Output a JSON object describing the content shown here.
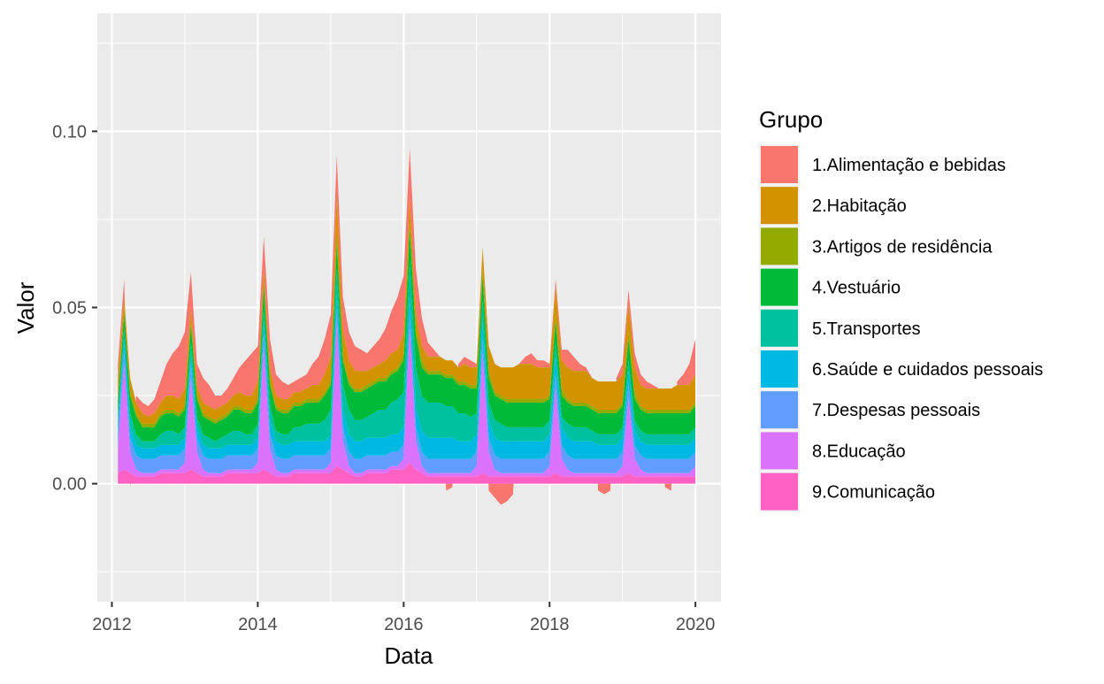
{
  "chart_data": {
    "type": "area",
    "stacked": true,
    "title": "",
    "xlabel": "Data",
    "ylabel": "Valor",
    "xlim": [
      2011.8,
      2020.35
    ],
    "ylim": [
      -0.0335,
      0.1335
    ],
    "x_ticks": [
      2012,
      2014,
      2016,
      2018,
      2020
    ],
    "y_ticks": [
      0.0,
      0.05,
      0.1
    ],
    "y_tick_labels": [
      "0.00",
      "0.05",
      "0.10"
    ],
    "grid": true,
    "legend": {
      "title": "Grupo",
      "position": "right",
      "entries": [
        "1.Alimentação e bebidas",
        "2.Habitação",
        "3.Artigos de residência",
        "4.Vestuário",
        "5.Transportes",
        "6.Saúde e cuidados pessoais",
        "7.Despesas pessoais",
        "8.Educação",
        "9.Comunicação"
      ]
    },
    "colors": [
      "#F8766D",
      "#D39200",
      "#93AA00",
      "#00BA38",
      "#00C19F",
      "#00B9E3",
      "#619CFF",
      "#DB72FB",
      "#FF61C3"
    ],
    "x": [
      2012.083,
      2012.167,
      2012.25,
      2012.333,
      2012.417,
      2012.5,
      2012.583,
      2012.667,
      2012.75,
      2012.833,
      2012.917,
      2013.0,
      2013.083,
      2013.167,
      2013.25,
      2013.333,
      2013.417,
      2013.5,
      2013.583,
      2013.667,
      2013.75,
      2013.833,
      2013.917,
      2014.0,
      2014.083,
      2014.167,
      2014.25,
      2014.333,
      2014.417,
      2014.5,
      2014.583,
      2014.667,
      2014.75,
      2014.833,
      2014.917,
      2015.0,
      2015.083,
      2015.167,
      2015.25,
      2015.333,
      2015.417,
      2015.5,
      2015.583,
      2015.667,
      2015.75,
      2015.833,
      2015.917,
      2016.0,
      2016.083,
      2016.167,
      2016.25,
      2016.333,
      2016.417,
      2016.5,
      2016.583,
      2016.667,
      2016.75,
      2016.833,
      2016.917,
      2017.0,
      2017.083,
      2017.167,
      2017.25,
      2017.333,
      2017.417,
      2017.5,
      2017.583,
      2017.667,
      2017.75,
      2017.833,
      2017.917,
      2018.0,
      2018.083,
      2018.167,
      2018.25,
      2018.333,
      2018.417,
      2018.5,
      2018.583,
      2018.667,
      2018.75,
      2018.833,
      2018.917,
      2019.0,
      2019.083,
      2019.167,
      2019.25,
      2019.333,
      2019.417,
      2019.5,
      2019.583,
      2019.667,
      2019.75,
      2019.833,
      2019.917,
      2020.0
    ],
    "series": [
      {
        "name": "1.Alimentação e bebidas",
        "values": [
          0.004,
          0.005,
          -0.001,
          0.002,
          0.003,
          0.003,
          0.004,
          0.006,
          0.009,
          0.012,
          0.015,
          0.016,
          0.01,
          0.006,
          0.007,
          0.006,
          0.004,
          0.003,
          0.004,
          0.005,
          0.007,
          0.01,
          0.012,
          0.01,
          0.009,
          0.008,
          0.006,
          0.005,
          0.004,
          0.003,
          0.004,
          0.004,
          0.006,
          0.008,
          0.01,
          0.012,
          0.011,
          0.009,
          0.008,
          0.007,
          0.006,
          0.005,
          0.006,
          0.007,
          0.009,
          0.012,
          0.015,
          0.016,
          0.014,
          0.012,
          0.008,
          0.004,
          0.002,
          0.0,
          -0.002,
          -0.001,
          0.001,
          0.002,
          0.002,
          0.001,
          0.0,
          -0.002,
          -0.004,
          -0.006,
          -0.005,
          -0.003,
          0.0,
          0.002,
          0.003,
          0.002,
          0.002,
          0.001,
          0.002,
          0.003,
          0.005,
          0.004,
          0.002,
          0.001,
          0.0,
          -0.002,
          -0.003,
          -0.002,
          0.001,
          0.003,
          0.004,
          0.004,
          0.003,
          0.002,
          0.001,
          0.0,
          -0.001,
          -0.002,
          0.001,
          0.003,
          0.006,
          0.01
        ]
      },
      {
        "name": "2.Habitação",
        "values": [
          0.005,
          0.003,
          0.004,
          0.003,
          0.003,
          0.002,
          0.003,
          0.003,
          0.004,
          0.004,
          0.004,
          0.005,
          0.004,
          0.003,
          0.003,
          0.003,
          0.003,
          0.003,
          0.003,
          0.003,
          0.004,
          0.004,
          0.004,
          0.005,
          0.004,
          0.004,
          0.003,
          0.003,
          0.003,
          0.003,
          0.003,
          0.003,
          0.004,
          0.004,
          0.005,
          0.007,
          0.012,
          0.008,
          0.006,
          0.005,
          0.005,
          0.004,
          0.004,
          0.004,
          0.005,
          0.005,
          0.005,
          0.006,
          0.007,
          0.005,
          0.004,
          0.004,
          0.004,
          0.004,
          0.004,
          0.004,
          0.004,
          0.005,
          0.005,
          0.005,
          0.006,
          0.007,
          0.008,
          0.008,
          0.009,
          0.009,
          0.01,
          0.01,
          0.01,
          0.009,
          0.009,
          0.008,
          0.008,
          0.008,
          0.009,
          0.009,
          0.009,
          0.009,
          0.008,
          0.008,
          0.008,
          0.008,
          0.008,
          0.008,
          0.008,
          0.007,
          0.006,
          0.006,
          0.006,
          0.006,
          0.006,
          0.006,
          0.007,
          0.007,
          0.007,
          0.008
        ]
      },
      {
        "name": "3.Artigos de residência",
        "values": [
          0.002,
          0.002,
          0.001,
          0.001,
          0.001,
          0.001,
          0.001,
          0.001,
          0.001,
          0.001,
          0.001,
          0.001,
          0.001,
          0.001,
          0.001,
          0.001,
          0.001,
          0.001,
          0.001,
          0.001,
          0.001,
          0.001,
          0.001,
          0.001,
          0.001,
          0.001,
          0.001,
          0.001,
          0.001,
          0.001,
          0.001,
          0.001,
          0.001,
          0.001,
          0.001,
          0.001,
          0.002,
          0.001,
          0.001,
          0.001,
          0.001,
          0.001,
          0.001,
          0.001,
          0.001,
          0.001,
          0.001,
          0.002,
          0.002,
          0.002,
          0.002,
          0.001,
          0.001,
          0.001,
          0.001,
          0.001,
          0.001,
          0.001,
          0.001,
          0.001,
          0.002,
          0.002,
          0.001,
          0.001,
          0.001,
          0.001,
          0.001,
          0.001,
          0.001,
          0.001,
          0.001,
          0.001,
          0.002,
          0.002,
          0.001,
          0.001,
          0.001,
          0.001,
          0.001,
          0.001,
          0.001,
          0.001,
          0.001,
          0.001,
          0.002,
          0.002,
          0.001,
          0.001,
          0.001,
          0.001,
          0.001,
          0.001,
          0.001,
          0.001,
          0.001,
          0.001
        ]
      },
      {
        "name": "4.Vestuário",
        "values": [
          0.004,
          0.004,
          0.005,
          0.005,
          0.004,
          0.004,
          0.004,
          0.005,
          0.005,
          0.005,
          0.005,
          0.005,
          0.005,
          0.005,
          0.005,
          0.005,
          0.005,
          0.005,
          0.005,
          0.006,
          0.006,
          0.006,
          0.006,
          0.006,
          0.006,
          0.006,
          0.006,
          0.006,
          0.006,
          0.006,
          0.006,
          0.006,
          0.006,
          0.006,
          0.007,
          0.007,
          0.007,
          0.007,
          0.007,
          0.008,
          0.008,
          0.008,
          0.008,
          0.008,
          0.008,
          0.008,
          0.008,
          0.009,
          0.009,
          0.009,
          0.008,
          0.008,
          0.008,
          0.008,
          0.008,
          0.008,
          0.008,
          0.008,
          0.008,
          0.007,
          0.007,
          0.007,
          0.007,
          0.007,
          0.007,
          0.007,
          0.007,
          0.007,
          0.007,
          0.007,
          0.007,
          0.006,
          0.006,
          0.006,
          0.006,
          0.006,
          0.006,
          0.006,
          0.006,
          0.006,
          0.006,
          0.006,
          0.006,
          0.006,
          0.006,
          0.006,
          0.006,
          0.006,
          0.006,
          0.006,
          0.006,
          0.006,
          0.006,
          0.006,
          0.006,
          0.006
        ]
      },
      {
        "name": "5.Transportes",
        "values": [
          0.002,
          0.003,
          0.004,
          0.003,
          0.002,
          0.002,
          0.002,
          0.003,
          0.004,
          0.004,
          0.003,
          0.003,
          0.003,
          0.003,
          0.003,
          0.003,
          0.002,
          0.003,
          0.003,
          0.004,
          0.004,
          0.003,
          0.003,
          0.004,
          0.004,
          0.004,
          0.003,
          0.003,
          0.003,
          0.004,
          0.004,
          0.005,
          0.005,
          0.005,
          0.006,
          0.007,
          0.007,
          0.007,
          0.007,
          0.006,
          0.006,
          0.006,
          0.007,
          0.008,
          0.008,
          0.009,
          0.01,
          0.01,
          0.01,
          0.011,
          0.01,
          0.01,
          0.01,
          0.01,
          0.009,
          0.009,
          0.008,
          0.008,
          0.007,
          0.006,
          0.006,
          0.005,
          0.005,
          0.005,
          0.004,
          0.004,
          0.004,
          0.004,
          0.004,
          0.004,
          0.004,
          0.004,
          0.004,
          0.003,
          0.004,
          0.004,
          0.004,
          0.004,
          0.003,
          0.003,
          0.003,
          0.003,
          0.003,
          0.003,
          0.003,
          0.003,
          0.003,
          0.003,
          0.003,
          0.003,
          0.003,
          0.003,
          0.003,
          0.003,
          0.003,
          0.003
        ]
      },
      {
        "name": "6.Saúde e cuidados pessoais",
        "values": [
          0.003,
          0.003,
          0.003,
          0.003,
          0.003,
          0.003,
          0.003,
          0.003,
          0.003,
          0.003,
          0.003,
          0.003,
          0.003,
          0.003,
          0.003,
          0.003,
          0.003,
          0.003,
          0.003,
          0.003,
          0.003,
          0.003,
          0.003,
          0.003,
          0.003,
          0.004,
          0.004,
          0.004,
          0.004,
          0.004,
          0.004,
          0.004,
          0.004,
          0.004,
          0.004,
          0.004,
          0.004,
          0.005,
          0.005,
          0.005,
          0.005,
          0.005,
          0.005,
          0.005,
          0.005,
          0.005,
          0.005,
          0.005,
          0.005,
          0.006,
          0.006,
          0.006,
          0.006,
          0.006,
          0.006,
          0.006,
          0.005,
          0.005,
          0.005,
          0.005,
          0.005,
          0.005,
          0.005,
          0.005,
          0.005,
          0.005,
          0.005,
          0.005,
          0.005,
          0.005,
          0.005,
          0.005,
          0.005,
          0.005,
          0.005,
          0.005,
          0.005,
          0.005,
          0.005,
          0.004,
          0.004,
          0.004,
          0.004,
          0.004,
          0.004,
          0.004,
          0.004,
          0.004,
          0.004,
          0.004,
          0.004,
          0.004,
          0.004,
          0.004,
          0.004,
          0.004
        ]
      },
      {
        "name": "7.Despesas pessoais",
        "values": [
          0.004,
          0.004,
          0.004,
          0.004,
          0.004,
          0.004,
          0.004,
          0.004,
          0.004,
          0.004,
          0.004,
          0.004,
          0.004,
          0.004,
          0.004,
          0.004,
          0.004,
          0.004,
          0.004,
          0.004,
          0.004,
          0.004,
          0.004,
          0.004,
          0.004,
          0.004,
          0.004,
          0.004,
          0.004,
          0.004,
          0.004,
          0.004,
          0.004,
          0.004,
          0.004,
          0.004,
          0.004,
          0.004,
          0.004,
          0.004,
          0.004,
          0.004,
          0.004,
          0.004,
          0.004,
          0.004,
          0.004,
          0.004,
          0.004,
          0.004,
          0.004,
          0.004,
          0.004,
          0.004,
          0.004,
          0.004,
          0.004,
          0.004,
          0.004,
          0.004,
          0.004,
          0.004,
          0.004,
          0.004,
          0.004,
          0.004,
          0.004,
          0.004,
          0.004,
          0.004,
          0.004,
          0.004,
          0.004,
          0.004,
          0.004,
          0.004,
          0.004,
          0.004,
          0.004,
          0.004,
          0.004,
          0.004,
          0.004,
          0.004,
          0.004,
          0.004,
          0.004,
          0.004,
          0.004,
          0.004,
          0.004,
          0.004,
          0.004,
          0.004,
          0.004,
          0.004
        ]
      },
      {
        "name": "8.Educação",
        "values": [
          0.007,
          0.03,
          0.006,
          0.002,
          0.001,
          0.001,
          0.001,
          0.001,
          0.001,
          0.001,
          0.001,
          0.003,
          0.026,
          0.006,
          0.002,
          0.001,
          0.001,
          0.001,
          0.001,
          0.001,
          0.001,
          0.001,
          0.001,
          0.003,
          0.035,
          0.007,
          0.002,
          0.001,
          0.001,
          0.001,
          0.001,
          0.001,
          0.001,
          0.001,
          0.001,
          0.003,
          0.041,
          0.008,
          0.002,
          0.001,
          0.001,
          0.001,
          0.001,
          0.001,
          0.001,
          0.001,
          0.001,
          0.003,
          0.038,
          0.008,
          0.002,
          0.001,
          0.001,
          0.001,
          0.001,
          0.001,
          0.001,
          0.001,
          0.001,
          0.003,
          0.034,
          0.007,
          0.002,
          0.001,
          0.001,
          0.001,
          0.001,
          0.001,
          0.001,
          0.001,
          0.001,
          0.003,
          0.024,
          0.005,
          0.002,
          0.001,
          0.001,
          0.001,
          0.001,
          0.001,
          0.001,
          0.001,
          0.001,
          0.003,
          0.021,
          0.005,
          0.002,
          0.001,
          0.001,
          0.001,
          0.001,
          0.001,
          0.001,
          0.001,
          0.001,
          0.003
        ]
      },
      {
        "name": "9.Comunicação",
        "values": [
          0.003,
          0.004,
          0.003,
          0.002,
          0.002,
          0.002,
          0.002,
          0.003,
          0.003,
          0.003,
          0.003,
          0.003,
          0.004,
          0.003,
          0.002,
          0.002,
          0.002,
          0.002,
          0.003,
          0.003,
          0.003,
          0.003,
          0.003,
          0.003,
          0.004,
          0.003,
          0.002,
          0.002,
          0.002,
          0.003,
          0.003,
          0.003,
          0.003,
          0.003,
          0.003,
          0.003,
          0.005,
          0.004,
          0.003,
          0.002,
          0.002,
          0.003,
          0.003,
          0.003,
          0.003,
          0.004,
          0.004,
          0.004,
          0.006,
          0.004,
          0.003,
          0.002,
          0.002,
          0.002,
          0.002,
          0.002,
          0.002,
          0.002,
          0.002,
          0.002,
          0.003,
          0.002,
          0.002,
          0.002,
          0.002,
          0.002,
          0.002,
          0.002,
          0.002,
          0.002,
          0.002,
          0.002,
          0.003,
          0.002,
          0.002,
          0.002,
          0.002,
          0.002,
          0.002,
          0.002,
          0.002,
          0.002,
          0.002,
          0.002,
          0.003,
          0.002,
          0.002,
          0.002,
          0.002,
          0.002,
          0.002,
          0.002,
          0.002,
          0.002,
          0.002,
          0.002
        ]
      }
    ]
  }
}
